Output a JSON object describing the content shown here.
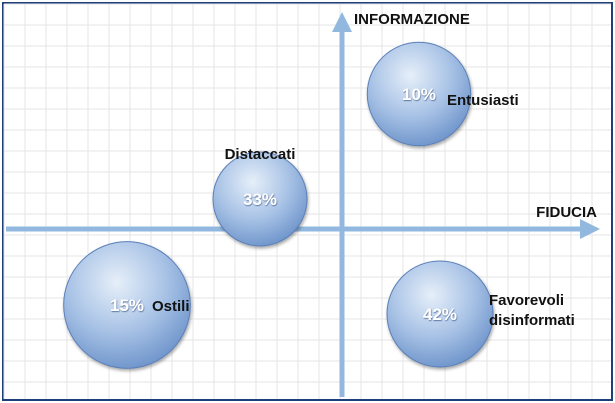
{
  "colors": {
    "border": "#1f3f7a",
    "grid": "#e6e6e6",
    "axis": "#92b8e0",
    "bubble_light": "#d9e6f5",
    "bubble_dark": "#6f95cb",
    "bubble_edge": "#5a7fb8"
  },
  "axes": {
    "x_label": "FIDUCIA",
    "y_label": "INFORMAZIONE"
  },
  "chart_data": {
    "type": "scatter",
    "title": "",
    "xlabel": "FIDUCIA",
    "ylabel": "INFORMAZIONE",
    "grid": true,
    "points": [
      {
        "label": "Entusiasti",
        "pct": "10%",
        "value": 10,
        "quadrant": "top-right"
      },
      {
        "label": "Distaccati",
        "pct": "33%",
        "value": 33,
        "quadrant": "top-left"
      },
      {
        "label": "Ostili",
        "pct": "15%",
        "value": 15,
        "quadrant": "bottom-left"
      },
      {
        "label": "Favorevoli disinformati",
        "label_lines": [
          "Favorevoli",
          "disinformati"
        ],
        "pct": "42%",
        "value": 42,
        "quadrant": "bottom-right"
      }
    ]
  }
}
